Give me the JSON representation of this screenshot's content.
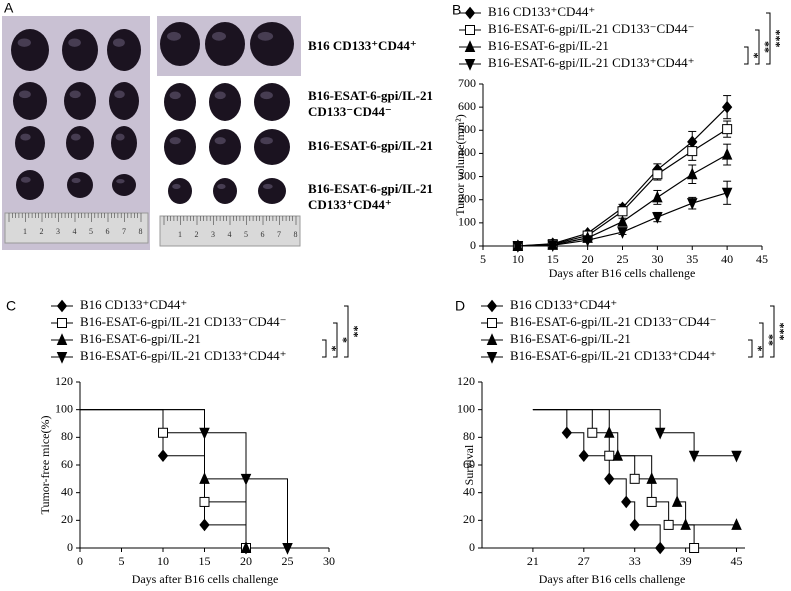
{
  "photo_panel": {
    "panel": "A",
    "group_labels": [
      [
        "B16 CD133⁺CD44⁺"
      ],
      [
        "B16-ESAT-6-gpi/IL-21",
        "CD133⁻CD44⁻"
      ],
      [
        "B16-ESAT-6-gpi/IL-21"
      ],
      [
        "B16-ESAT-6-gpi/IL-21",
        "CD133⁺CD44⁺"
      ]
    ],
    "ruler_ticks": [
      "1",
      "2",
      "3",
      "4",
      "5",
      "6",
      "7",
      "8"
    ]
  },
  "chart_data": [
    {
      "type": "line",
      "panel": "B",
      "xlabel": "Days after B16 cells challenge",
      "ylabel": "Tumor volume(mm²)",
      "x": [
        10,
        15,
        20,
        25,
        30,
        35,
        40
      ],
      "xlim": [
        5,
        45
      ],
      "xticks": [
        5,
        10,
        15,
        20,
        25,
        30,
        35,
        40,
        45
      ],
      "ylim": [
        0,
        700
      ],
      "yticks": [
        0,
        100,
        200,
        300,
        400,
        500,
        600,
        700
      ],
      "annotations": [
        "*",
        "**",
        "***"
      ],
      "series": [
        {
          "name": "B16 CD133⁺CD44⁺",
          "marker": "diamond",
          "color": "#000000",
          "values": [
            0,
            10,
            55,
            165,
            330,
            450,
            600
          ],
          "errors": [
            0,
            5,
            10,
            15,
            25,
            45,
            50
          ]
        },
        {
          "name": "B16-ESAT-6-gpi/IL-21 CD133⁻CD44⁻",
          "marker": "square",
          "color": "#000000",
          "values": [
            0,
            8,
            45,
            150,
            310,
            410,
            505
          ],
          "errors": [
            0,
            5,
            10,
            15,
            25,
            40,
            35
          ]
        },
        {
          "name": "B16-ESAT-6-gpi/IL-21",
          "marker": "triangle",
          "color": "#000000",
          "values": [
            0,
            5,
            35,
            105,
            210,
            310,
            395
          ],
          "errors": [
            0,
            3,
            8,
            15,
            30,
            40,
            45
          ]
        },
        {
          "name": "B16-ESAT-6-gpi/IL-21 CD133⁺CD44⁺",
          "marker": "triangle-down",
          "color": "#000000",
          "values": [
            0,
            3,
            25,
            60,
            125,
            185,
            230
          ],
          "errors": [
            0,
            2,
            5,
            10,
            20,
            25,
            50
          ]
        }
      ]
    },
    {
      "type": "step",
      "panel": "C",
      "xlabel": "Days after B16 cells challenge",
      "ylabel": "Tumor-free mice(%)",
      "xlim": [
        0,
        30
      ],
      "xticks": [
        0,
        5,
        10,
        15,
        20,
        25,
        30
      ],
      "ylim": [
        0,
        120
      ],
      "yticks": [
        0,
        20,
        40,
        60,
        80,
        100,
        120
      ],
      "annotations": [
        "*",
        "*",
        "**"
      ],
      "series": [
        {
          "name": "B16 CD133⁺CD44⁺",
          "marker": "diamond",
          "color": "#000000",
          "x": [
            0,
            10,
            15,
            20
          ],
          "values": [
            100,
            66.7,
            16.7,
            0
          ]
        },
        {
          "name": "B16-ESAT-6-gpi/IL-21 CD133⁻CD44⁻",
          "marker": "square",
          "color": "#000000",
          "x": [
            0,
            10,
            15,
            20
          ],
          "values": [
            100,
            83.3,
            33.3,
            0
          ]
        },
        {
          "name": "B16-ESAT-6-gpi/IL-21",
          "marker": "triangle",
          "color": "#000000",
          "x": [
            0,
            15,
            20
          ],
          "values": [
            100,
            50,
            0
          ]
        },
        {
          "name": "B16-ESAT-6-gpi/IL-21 CD133⁺CD44⁺",
          "marker": "triangle-down",
          "color": "#000000",
          "x": [
            0,
            15,
            20,
            25
          ],
          "values": [
            100,
            83.3,
            50,
            0
          ]
        }
      ]
    },
    {
      "type": "step",
      "panel": "D",
      "xlabel": "Days after B16 cells challenge",
      "ylabel": "Survival",
      "xlim": [
        15,
        46
      ],
      "xticks": [
        21,
        27,
        33,
        39,
        45
      ],
      "ylim": [
        0,
        120
      ],
      "yticks": [
        0,
        20,
        40,
        60,
        80,
        100,
        120
      ],
      "annotations": [
        "*",
        "**",
        "***"
      ],
      "series": [
        {
          "name": "B16 CD133⁺CD44⁺",
          "marker": "diamond",
          "color": "#000000",
          "x": [
            21,
            25,
            27,
            30,
            32,
            33,
            36
          ],
          "values": [
            100,
            83.3,
            66.7,
            50,
            33.3,
            16.7,
            0
          ]
        },
        {
          "name": "B16-ESAT-6-gpi/IL-21 CD133⁻CD44⁻",
          "marker": "square",
          "color": "#000000",
          "x": [
            21,
            28,
            30,
            33,
            35,
            37,
            40
          ],
          "values": [
            100,
            83.3,
            66.7,
            50,
            33.3,
            16.7,
            0
          ]
        },
        {
          "name": "B16-ESAT-6-gpi/IL-21",
          "marker": "triangle",
          "color": "#000000",
          "x": [
            21,
            30,
            31,
            35,
            38,
            39,
            45
          ],
          "values": [
            100,
            83.3,
            66.7,
            50,
            33.3,
            16.7,
            16.7
          ]
        },
        {
          "name": "B16-ESAT-6-gpi/IL-21 CD133⁺CD44⁺",
          "marker": "triangle-down",
          "color": "#000000",
          "x": [
            21,
            36,
            40,
            45
          ],
          "values": [
            100,
            83.3,
            66.7,
            66.7
          ]
        }
      ]
    }
  ]
}
